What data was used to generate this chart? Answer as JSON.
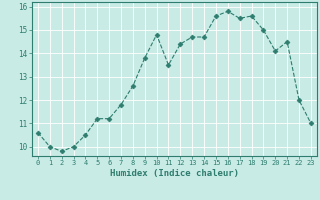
{
  "x": [
    0,
    1,
    2,
    3,
    4,
    5,
    6,
    7,
    8,
    9,
    10,
    11,
    12,
    13,
    14,
    15,
    16,
    17,
    18,
    19,
    20,
    21,
    22,
    23
  ],
  "y": [
    10.6,
    10.0,
    9.8,
    10.0,
    10.5,
    11.2,
    11.2,
    11.8,
    12.6,
    13.8,
    14.8,
    13.5,
    14.4,
    14.7,
    14.7,
    15.6,
    15.8,
    15.5,
    15.6,
    15.0,
    14.1,
    14.5,
    12.0,
    11.0
  ],
  "xlabel": "Humidex (Indice chaleur)",
  "xlim": [
    -0.5,
    23.5
  ],
  "ylim": [
    9.6,
    16.2
  ],
  "yticks": [
    10,
    11,
    12,
    13,
    14,
    15,
    16
  ],
  "xticks": [
    0,
    1,
    2,
    3,
    4,
    5,
    6,
    7,
    8,
    9,
    10,
    11,
    12,
    13,
    14,
    15,
    16,
    17,
    18,
    19,
    20,
    21,
    22,
    23
  ],
  "line_color": "#2e7d6e",
  "marker_color": "#2e7d6e",
  "bg_color": "#c8ebe6",
  "grid_color": "#ffffff",
  "label_color": "#2e7d6e",
  "tick_color": "#2e7d6e",
  "spine_color": "#2e7d6e"
}
